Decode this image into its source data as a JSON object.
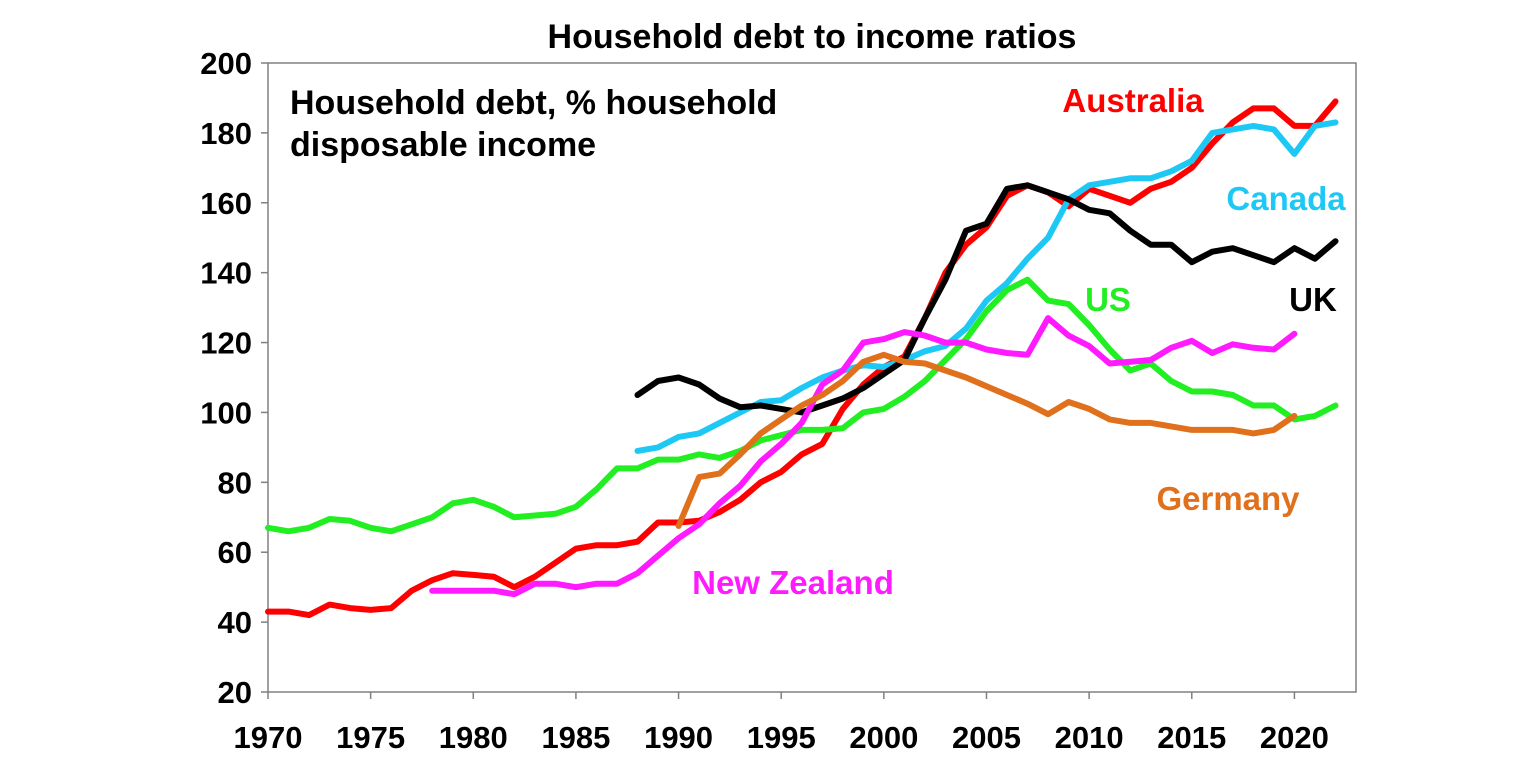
{
  "chart_data": {
    "type": "line",
    "title": "Household debt to income ratios",
    "subtitle_lines": [
      "Household debt, % household",
      "disposable income"
    ],
    "xlabel": "",
    "ylabel": "",
    "xlim": [
      1970,
      2023
    ],
    "ylim": [
      20,
      200
    ],
    "xticks": [
      1970,
      1975,
      1980,
      1985,
      1990,
      1995,
      2000,
      2005,
      2010,
      2015,
      2020
    ],
    "yticks": [
      20,
      40,
      60,
      80,
      100,
      120,
      140,
      160,
      180,
      200
    ],
    "grid": false,
    "legend": "inline labels",
    "series": [
      {
        "name": "Australia",
        "color": "#ff0000",
        "x": [
          1970,
          1971,
          1972,
          1973,
          1974,
          1975,
          1976,
          1977,
          1978,
          1979,
          1980,
          1981,
          1982,
          1983,
          1984,
          1985,
          1986,
          1987,
          1988,
          1989,
          1990,
          1991,
          1992,
          1993,
          1994,
          1995,
          1996,
          1997,
          1998,
          1999,
          2000,
          2001,
          2002,
          2003,
          2004,
          2005,
          2006,
          2007,
          2008,
          2009,
          2010,
          2011,
          2012,
          2013,
          2014,
          2015,
          2016,
          2017,
          2018,
          2019,
          2020,
          2021,
          2022
        ],
        "y": [
          43,
          43,
          42,
          45,
          44,
          43.5,
          44,
          49,
          52,
          54,
          53.5,
          53,
          50,
          53,
          57,
          61,
          62,
          62,
          63,
          68.5,
          68.5,
          69,
          71.5,
          75,
          80,
          83,
          88,
          91,
          101,
          108,
          113,
          116,
          127,
          140,
          148,
          153,
          162,
          165,
          163,
          159,
          164,
          162,
          160,
          164,
          166,
          170,
          177,
          183,
          187,
          187,
          182,
          182,
          189
        ]
      },
      {
        "name": "Canada",
        "color": "#1ec8f5",
        "x": [
          1988,
          1989,
          1990,
          1991,
          1992,
          1993,
          1994,
          1995,
          1996,
          1997,
          1998,
          1999,
          2000,
          2001,
          2002,
          2003,
          2004,
          2005,
          2006,
          2007,
          2008,
          2009,
          2010,
          2011,
          2012,
          2013,
          2014,
          2015,
          2016,
          2017,
          2018,
          2019,
          2020,
          2021,
          2022
        ],
        "y": [
          89,
          90,
          93,
          94,
          97,
          100,
          103,
          103.5,
          107,
          110,
          112,
          113.5,
          113,
          115,
          117.5,
          119,
          124,
          132,
          137,
          144,
          150,
          161,
          165,
          166,
          167,
          167,
          169,
          172,
          180,
          181,
          182,
          181,
          174,
          182,
          183
        ]
      },
      {
        "name": "UK",
        "color": "#000000",
        "x": [
          1988,
          1989,
          1990,
          1991,
          1992,
          1993,
          1994,
          1995,
          1996,
          1997,
          1998,
          1999,
          2000,
          2001,
          2002,
          2003,
          2004,
          2005,
          2006,
          2007,
          2008,
          2009,
          2010,
          2011,
          2012,
          2013,
          2014,
          2015,
          2016,
          2017,
          2018,
          2019,
          2020,
          2021,
          2022
        ],
        "y": [
          105,
          109,
          110,
          108,
          104,
          101.5,
          102,
          101,
          100,
          102,
          104,
          107,
          111,
          115,
          127,
          138,
          152,
          154,
          164,
          165,
          163,
          161,
          158,
          157,
          152,
          148,
          148,
          143,
          146,
          147,
          145,
          143,
          147,
          144,
          149
        ]
      },
      {
        "name": "US",
        "color": "#21ef21",
        "x": [
          1970,
          1971,
          1972,
          1973,
          1974,
          1975,
          1976,
          1977,
          1978,
          1979,
          1980,
          1981,
          1982,
          1983,
          1984,
          1985,
          1986,
          1987,
          1988,
          1989,
          1990,
          1991,
          1992,
          1993,
          1994,
          1995,
          1996,
          1997,
          1998,
          1999,
          2000,
          2001,
          2002,
          2003,
          2004,
          2005,
          2006,
          2007,
          2008,
          2009,
          2010,
          2011,
          2012,
          2013,
          2014,
          2015,
          2016,
          2017,
          2018,
          2019,
          2020,
          2021,
          2022
        ],
        "y": [
          67,
          66,
          67,
          69.5,
          69,
          67,
          66,
          68,
          70,
          74,
          75,
          73,
          70,
          70.5,
          71,
          73,
          78,
          84,
          84,
          86.5,
          86.5,
          88,
          87,
          89,
          92,
          93.5,
          95,
          95,
          95.5,
          100,
          101,
          104.5,
          109,
          115,
          121,
          129,
          135,
          138,
          132,
          131,
          125,
          118,
          112,
          114,
          109,
          106,
          106,
          105,
          102,
          102,
          98,
          99,
          102
        ]
      },
      {
        "name": "New Zealand",
        "color": "#ff1aff",
        "x": [
          1978,
          1979,
          1980,
          1981,
          1982,
          1983,
          1984,
          1985,
          1986,
          1987,
          1988,
          1989,
          1990,
          1991,
          1992,
          1993,
          1994,
          1995,
          1996,
          1997,
          1998,
          1999,
          2000,
          2001,
          2002,
          2003,
          2004,
          2005,
          2006,
          2007,
          2008,
          2009,
          2010,
          2011,
          2012,
          2013,
          2014,
          2015,
          2016,
          2017,
          2018,
          2019,
          2020
        ],
        "y": [
          49,
          49,
          49,
          49,
          48,
          51,
          51,
          50,
          51,
          51,
          54,
          59,
          64,
          68,
          74,
          79,
          86,
          91,
          97,
          108,
          112,
          120,
          121,
          123,
          122,
          120,
          120,
          118,
          117,
          116.5,
          127,
          122,
          119,
          114,
          114.5,
          115,
          118.5,
          120.5,
          117,
          119.5,
          118.5,
          118,
          122.5
        ]
      },
      {
        "name": "Germany",
        "color": "#e0701c",
        "x": [
          1990,
          1991,
          1992,
          1993,
          1994,
          1995,
          1996,
          1997,
          1998,
          1999,
          2000,
          2001,
          2002,
          2003,
          2004,
          2005,
          2006,
          2007,
          2008,
          2009,
          2010,
          2011,
          2012,
          2013,
          2014,
          2015,
          2016,
          2017,
          2018,
          2019,
          2020
        ],
        "y": [
          67.5,
          81.5,
          82.5,
          88,
          94,
          98,
          102,
          105,
          109,
          114.5,
          116.5,
          114.5,
          114,
          112,
          110,
          107.5,
          105,
          102.5,
          99.5,
          103,
          101,
          98,
          97,
          97,
          96,
          95,
          95,
          95,
          94,
          95,
          99
        ]
      }
    ]
  }
}
